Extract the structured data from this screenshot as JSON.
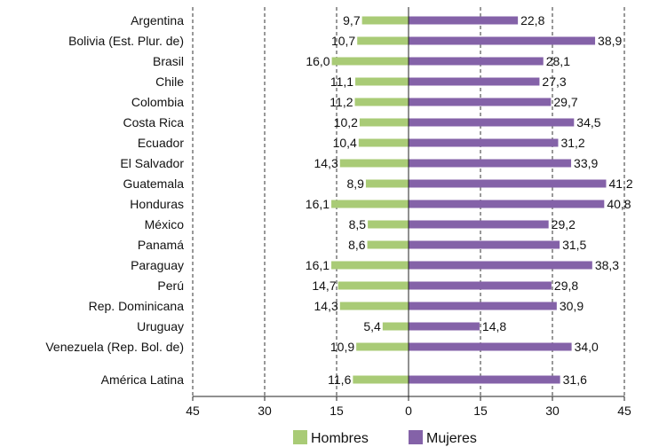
{
  "chart_data": {
    "type": "bar",
    "orientation": "horizontal-diverging",
    "categories": [
      "Argentina",
      "Bolivia (Est. Plur. de)",
      "Brasil",
      "Chile",
      "Colombia",
      "Costa Rica",
      "Ecuador",
      "El Salvador",
      "Guatemala",
      "Honduras",
      "México",
      "Panamá",
      "Paraguay",
      "Perú",
      "Rep. Dominicana",
      "Uruguay",
      "Venezuela (Rep. Bol. de)",
      "América Latina"
    ],
    "series": [
      {
        "name": "Hombres",
        "color": "#a9cb76",
        "values": [
          9.7,
          10.7,
          16.0,
          11.1,
          11.2,
          10.2,
          10.4,
          14.3,
          8.9,
          16.1,
          8.5,
          8.6,
          16.1,
          14.7,
          14.3,
          5.4,
          10.9,
          11.6
        ],
        "labels": [
          "9,7",
          "10,7",
          "16,0",
          "11,1",
          "11,2",
          "10,2",
          "10,4",
          "14,3",
          "8,9",
          "16,1",
          "8,5",
          "8,6",
          "16,1",
          "14,7",
          "14,3",
          "5,4",
          "10,9",
          "11,6"
        ]
      },
      {
        "name": "Mujeres",
        "color": "#8462a8",
        "values": [
          22.8,
          38.9,
          28.1,
          27.3,
          29.7,
          34.5,
          31.2,
          33.9,
          41.2,
          40.8,
          29.2,
          31.5,
          38.3,
          29.8,
          30.9,
          14.8,
          34.0,
          31.6
        ],
        "labels": [
          "22,8",
          "38,9",
          "28,1",
          "27,3",
          "29,7",
          "34,5",
          "31,2",
          "33,9",
          "41,2",
          "40,8",
          "29,2",
          "31,5",
          "38,3",
          "29,8",
          "30,9",
          "14,8",
          "34,0",
          "31,6"
        ]
      }
    ],
    "xticks": [
      -45,
      -30,
      -15,
      0,
      15,
      30,
      45
    ],
    "xtick_labels": [
      "45",
      "30",
      "15",
      "0",
      "15",
      "30",
      "45"
    ],
    "xlim": [
      -45,
      45
    ],
    "grid": "vertical-dashed",
    "legend": "bottom-center"
  }
}
